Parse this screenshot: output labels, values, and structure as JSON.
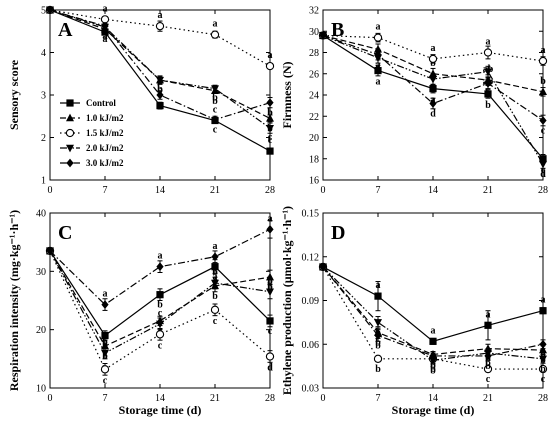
{
  "figure": {
    "xlabel": "Storage time (d)"
  },
  "chart_data": [
    {
      "panel": "A",
      "type": "line",
      "x": [
        0,
        7,
        14,
        21,
        28
      ],
      "xticks": [
        0,
        7,
        14,
        21,
        28
      ],
      "xlim": [
        0,
        28
      ],
      "ylabel": "Sensory score",
      "ylim": [
        1,
        5
      ],
      "yticks": [
        1,
        2,
        3,
        4,
        5
      ],
      "legend": "left-center",
      "series": [
        {
          "name": "Control",
          "marker": "square",
          "dash": "solid",
          "values": [
            5.0,
            4.48,
            2.75,
            2.4,
            1.68
          ],
          "errors": [
            0,
            0.06,
            0.08,
            0.06,
            0.06
          ],
          "labels": [
            "",
            "a",
            "c",
            "c",
            "c"
          ]
        },
        {
          "name": "1.0 kJ/m2",
          "marker": "triangle-up",
          "dash": "dash",
          "values": [
            5.0,
            4.55,
            3.35,
            3.1,
            2.45
          ],
          "errors": [
            0,
            0.06,
            0.08,
            0.06,
            0.08
          ],
          "labels": [
            "",
            "a",
            "b",
            "b",
            "b"
          ]
        },
        {
          "name": "1.5 kJ/m2",
          "marker": "circle-open",
          "dash": "dot",
          "values": [
            5.0,
            4.78,
            4.62,
            4.42,
            3.68
          ],
          "errors": [
            0,
            0.06,
            0.12,
            0.08,
            0.06
          ],
          "labels": [
            "",
            "a",
            "a",
            "a",
            "a"
          ]
        },
        {
          "name": "2.0 kJ/m2",
          "marker": "triangle-down",
          "dash": "dashdotdot",
          "values": [
            5.0,
            4.6,
            3.35,
            3.15,
            2.22
          ],
          "errors": [
            0,
            0.06,
            0.1,
            0.08,
            0.12
          ],
          "labels": [
            "",
            "a",
            "b",
            "b",
            "c"
          ]
        },
        {
          "name": "3.0 kJ/m2",
          "marker": "diamond",
          "dash": "dashdot",
          "values": [
            5.0,
            4.62,
            3.0,
            2.42,
            2.82
          ],
          "errors": [
            0,
            0.06,
            0.1,
            0.08,
            0.12
          ],
          "labels": [
            "",
            "a",
            "c",
            "c",
            "b"
          ]
        }
      ]
    },
    {
      "panel": "B",
      "type": "line",
      "x": [
        0,
        7,
        14,
        21,
        28
      ],
      "xticks": [
        0,
        7,
        14,
        21,
        28
      ],
      "xlim": [
        0,
        28
      ],
      "ylabel": "Firmness (N)",
      "ylim": [
        16,
        32
      ],
      "yticks": [
        16,
        18,
        20,
        22,
        24,
        26,
        28,
        30,
        32
      ],
      "series": [
        {
          "name": "Control",
          "marker": "square",
          "dash": "solid",
          "values": [
            29.6,
            26.3,
            24.6,
            24.1,
            18.0
          ],
          "errors": [
            0,
            0.5,
            0.4,
            0.4,
            0.4
          ],
          "labels": [
            "",
            "a",
            "a",
            "b",
            "c"
          ]
        },
        {
          "name": "1.0 kJ/m2",
          "marker": "triangle-up",
          "dash": "dash",
          "values": [
            29.6,
            28.3,
            26.0,
            25.4,
            24.3
          ],
          "errors": [
            0,
            0.5,
            0.5,
            0.5,
            0.4
          ],
          "labels": [
            "",
            "a",
            "b",
            "ab",
            "b"
          ]
        },
        {
          "name": "1.5 kJ/m2",
          "marker": "circle-open",
          "dash": "dot",
          "values": [
            29.6,
            29.4,
            27.4,
            28.0,
            27.2
          ],
          "errors": [
            0,
            0.4,
            0.4,
            0.6,
            0.4
          ],
          "labels": [
            "",
            "a",
            "a",
            "a",
            "a"
          ]
        },
        {
          "name": "2.0 kJ/m2",
          "marker": "triangle-down",
          "dash": "dashdotdot",
          "values": [
            29.6,
            27.5,
            25.5,
            26.2,
            17.5
          ],
          "errors": [
            0,
            0.5,
            0.5,
            0.5,
            0.4
          ],
          "labels": [
            "",
            "a",
            "b",
            "ab",
            "d"
          ]
        },
        {
          "name": "3.0 kJ/m2",
          "marker": "diamond",
          "dash": "dashdot",
          "values": [
            29.6,
            27.8,
            23.2,
            25.1,
            21.6
          ],
          "errors": [
            0,
            0.5,
            0.5,
            0.5,
            0.5
          ],
          "labels": [
            "",
            "a",
            "d",
            "b",
            "c"
          ]
        }
      ]
    },
    {
      "panel": "C",
      "type": "line",
      "x": [
        0,
        7,
        14,
        21,
        28
      ],
      "xticks": [
        0,
        7,
        14,
        21,
        28
      ],
      "xlim": [
        0,
        28
      ],
      "ylabel": "Respiration intensity (mg·kg⁻¹·h⁻¹)",
      "ylim": [
        10,
        40
      ],
      "yticks": [
        10,
        20,
        30,
        40
      ],
      "series": [
        {
          "name": "Control",
          "marker": "square",
          "dash": "solid",
          "values": [
            33.5,
            19.0,
            26.0,
            30.8,
            21.5
          ],
          "errors": [
            0,
            0.8,
            1.0,
            1.2,
            1.0
          ],
          "labels": [
            "",
            "b",
            "b",
            "a",
            "c"
          ]
        },
        {
          "name": "1.0 kJ/m2",
          "marker": "triangle-up",
          "dash": "dash",
          "values": [
            33.5,
            17.2,
            21.5,
            27.5,
            29.0
          ],
          "errors": [
            0,
            1.0,
            0.8,
            1.0,
            1.2
          ],
          "labels": [
            "",
            "b",
            "c",
            "b",
            "b"
          ]
        },
        {
          "name": "1.5 kJ/m2",
          "marker": "circle-open",
          "dash": "dot",
          "values": [
            33.5,
            13.2,
            19.2,
            23.4,
            15.4
          ],
          "errors": [
            0,
            1.0,
            1.0,
            1.0,
            1.0
          ],
          "labels": [
            "",
            "c",
            "c",
            "c",
            "d"
          ]
        },
        {
          "name": "2.0 kJ/m2",
          "marker": "triangle-down",
          "dash": "dashdotdot",
          "values": [
            33.5,
            16.0,
            21.0,
            28.0,
            26.5
          ],
          "errors": [
            0,
            1.0,
            1.0,
            1.0,
            1.2
          ],
          "labels": [
            "",
            "b",
            "c",
            "b",
            "b"
          ]
        },
        {
          "name": "3.0 kJ/m2",
          "marker": "diamond",
          "dash": "dashdot",
          "values": [
            33.5,
            24.3,
            30.8,
            32.5,
            37.2
          ],
          "errors": [
            0,
            1.0,
            1.0,
            1.0,
            1.5
          ],
          "labels": [
            "",
            "a",
            "a",
            "a",
            "a"
          ]
        }
      ]
    },
    {
      "panel": "D",
      "type": "line",
      "x": [
        0,
        7,
        14,
        21,
        28
      ],
      "xticks": [
        0,
        7,
        14,
        21,
        28
      ],
      "xlim": [
        0,
        28
      ],
      "ylabel": "Ethylene production (μmol·kg⁻¹·h⁻¹)",
      "ylim": [
        0.03,
        0.15
      ],
      "yticks": [
        0.03,
        0.06,
        0.09,
        0.12,
        0.15
      ],
      "series": [
        {
          "name": "Control",
          "marker": "square",
          "dash": "solid",
          "values": [
            0.113,
            0.093,
            0.062,
            0.073,
            0.083
          ],
          "errors": [
            0,
            0.01,
            0.002,
            0.01,
            0.002
          ],
          "labels": [
            "",
            "a",
            "a",
            "a",
            "a"
          ]
        },
        {
          "name": "1.0 kJ/m2",
          "marker": "triangle-up",
          "dash": "dash",
          "values": [
            0.113,
            0.068,
            0.053,
            0.057,
            0.056
          ],
          "errors": [
            0,
            0.004,
            0.002,
            0.003,
            0.003
          ],
          "labels": [
            "",
            "b",
            "b",
            "b",
            "b"
          ]
        },
        {
          "name": "1.5 kJ/m2",
          "marker": "circle-open",
          "dash": "dot",
          "values": [
            0.113,
            0.05,
            0.05,
            0.043,
            0.043
          ],
          "errors": [
            0,
            0.002,
            0.002,
            0.002,
            0.002
          ],
          "labels": [
            "",
            "b",
            "b",
            "c",
            "c"
          ]
        },
        {
          "name": "2.0 kJ/m2",
          "marker": "triangle-down",
          "dash": "dashdotdot",
          "values": [
            0.113,
            0.075,
            0.049,
            0.054,
            0.05
          ],
          "errors": [
            0,
            0.004,
            0.002,
            0.003,
            0.003
          ],
          "labels": [
            "",
            "b",
            "b",
            "b",
            "b"
          ]
        },
        {
          "name": "3.0 kJ/m2",
          "marker": "diamond",
          "dash": "dashdot",
          "values": [
            0.113,
            0.066,
            0.052,
            0.052,
            0.06
          ],
          "errors": [
            0,
            0.004,
            0.002,
            0.003,
            0.003
          ],
          "labels": [
            "",
            "b",
            "b",
            "b",
            "b"
          ]
        }
      ]
    }
  ]
}
